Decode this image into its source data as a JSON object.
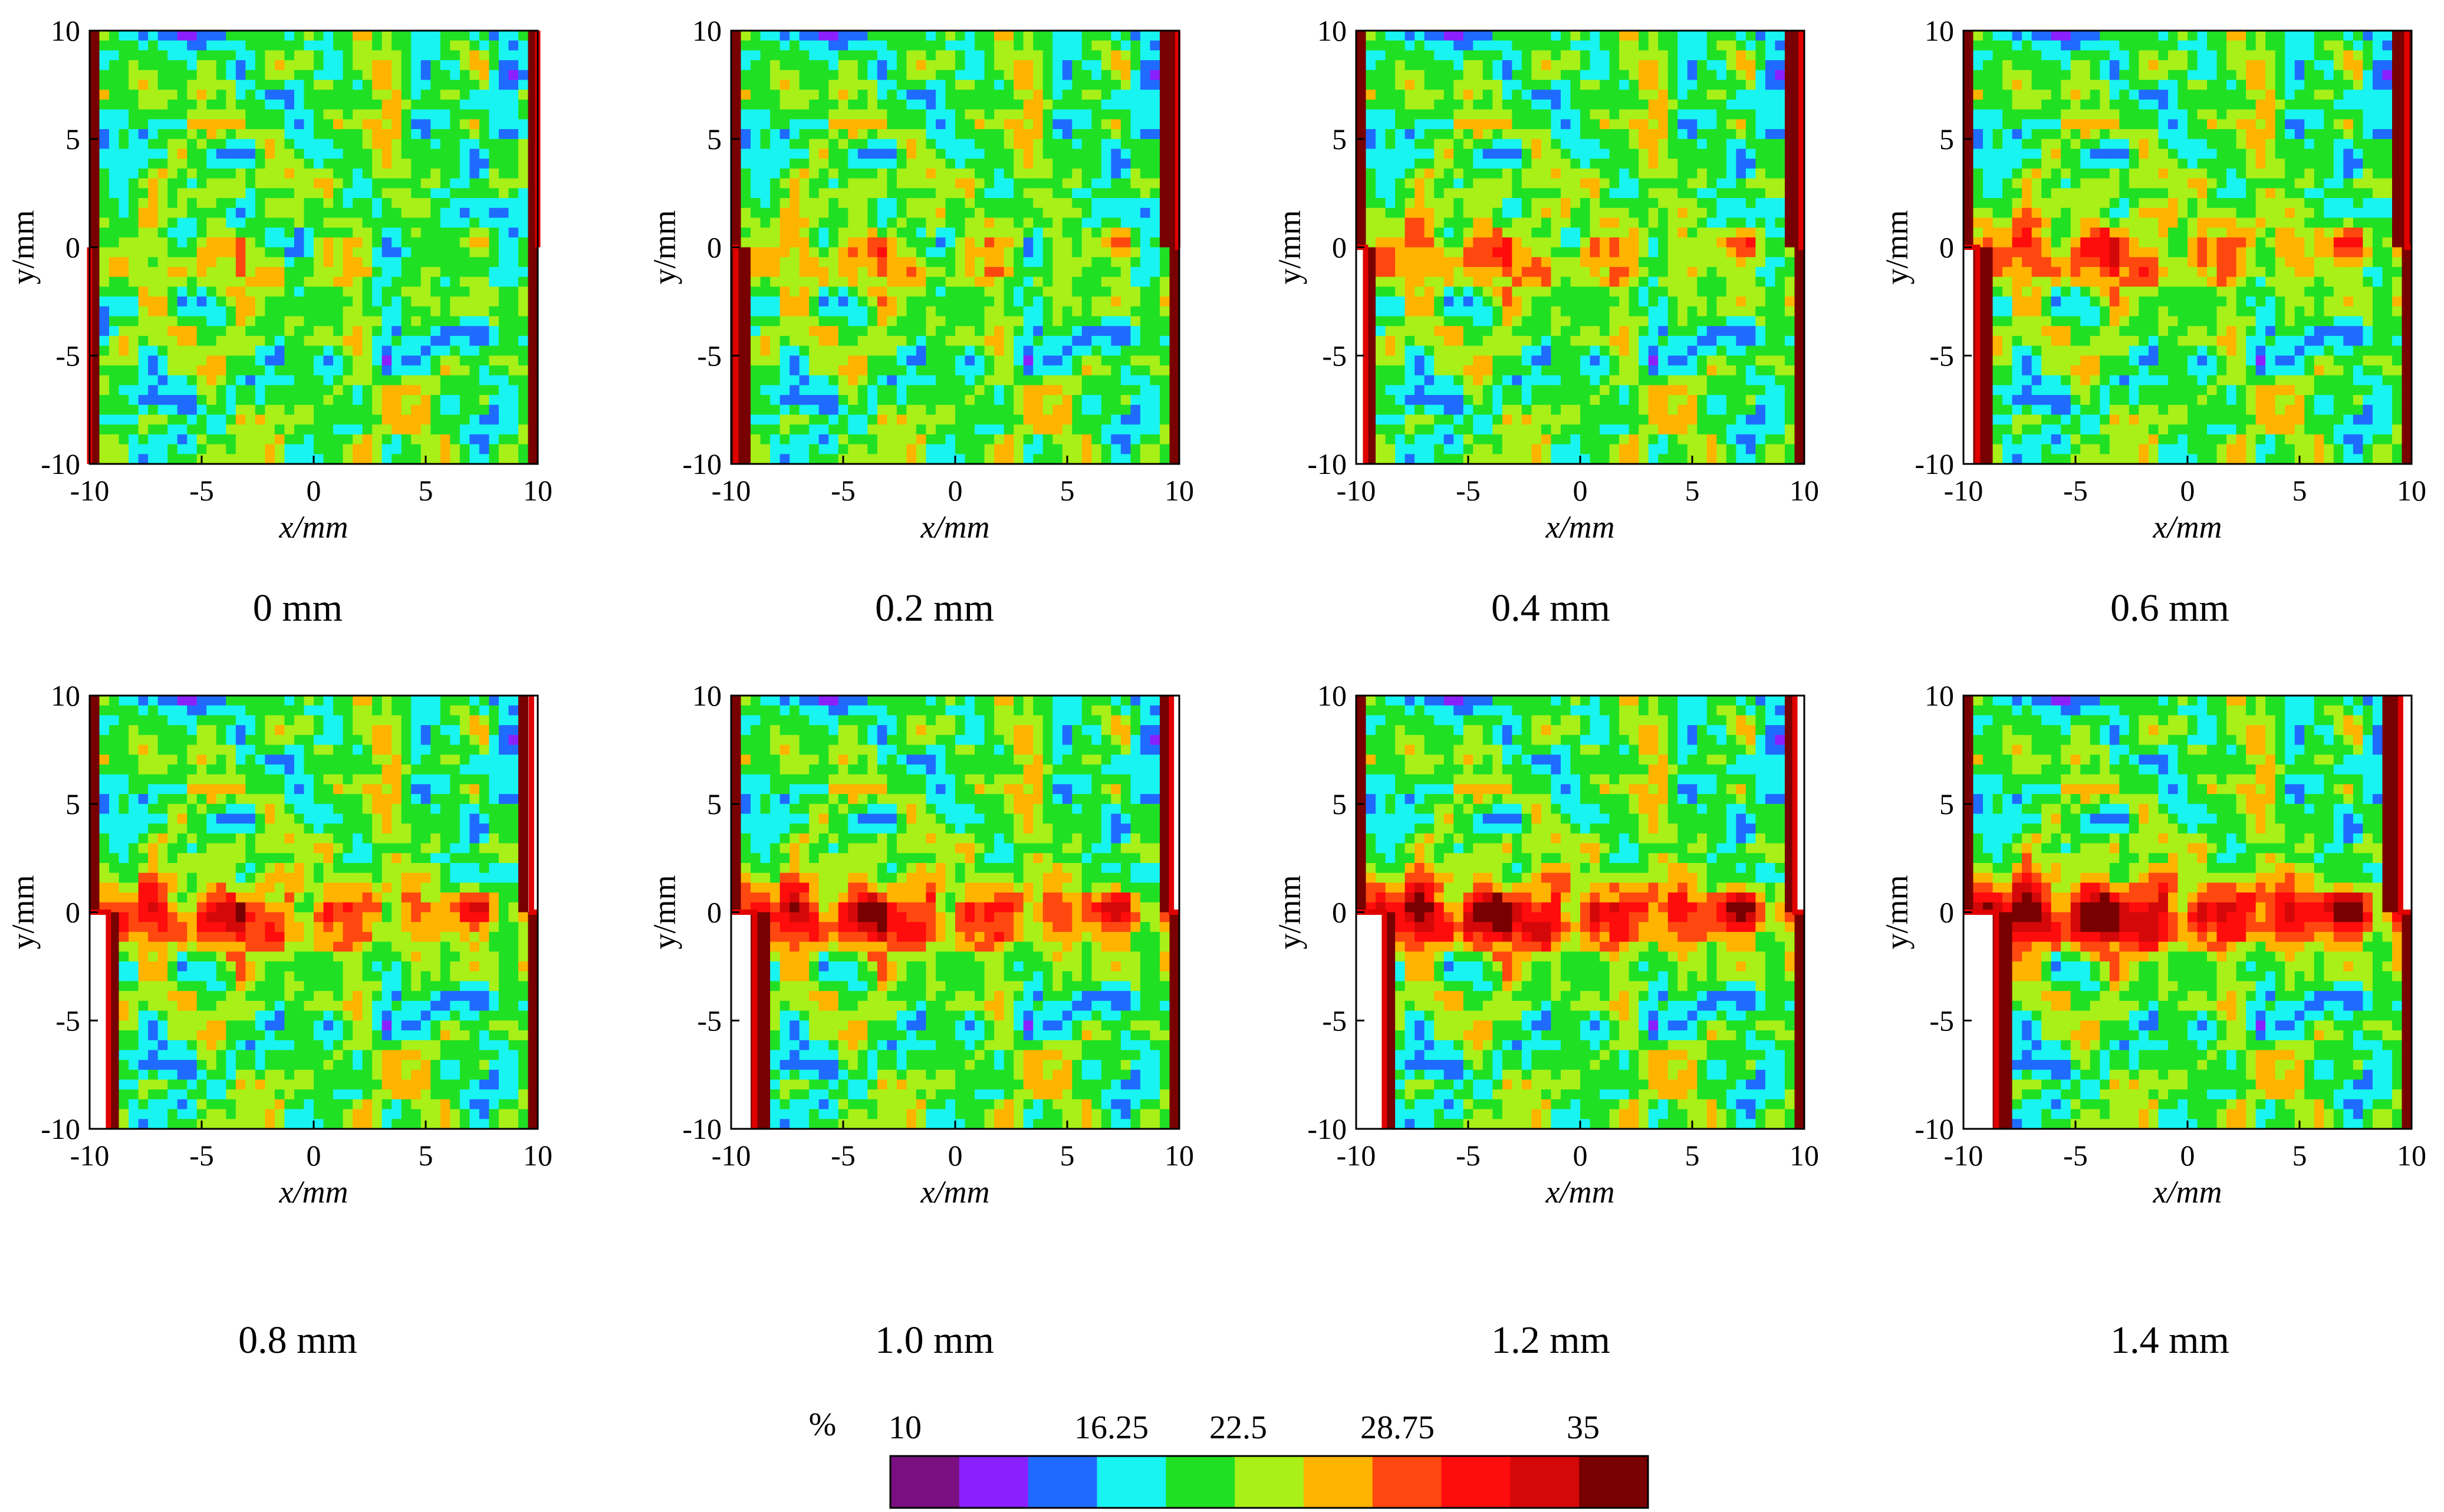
{
  "chart_data": {
    "type": "heatmap",
    "description_units": "%",
    "panels": [
      {
        "caption": "0 mm",
        "displacement_mm": 0.0,
        "xlabel": "x/mm",
        "ylabel": "y/mm",
        "xlim": [
          -10,
          10
        ],
        "ylim": [
          -10,
          10
        ],
        "xticks": [
          "-10",
          "-5",
          "0",
          "5",
          "10"
        ],
        "yticks": [
          "10",
          "5",
          "0",
          "-5",
          "-10"
        ]
      },
      {
        "caption": "0.2 mm",
        "displacement_mm": 0.2,
        "xlabel": "x/mm",
        "ylabel": "y/mm",
        "xlim": [
          -10,
          10
        ],
        "ylim": [
          -10,
          10
        ],
        "xticks": [
          "-10",
          "-5",
          "0",
          "5",
          "10"
        ],
        "yticks": [
          "10",
          "5",
          "0",
          "-5",
          "-10"
        ]
      },
      {
        "caption": "0.4 mm",
        "displacement_mm": 0.4,
        "xlabel": "x/mm",
        "ylabel": "y/mm",
        "xlim": [
          -10,
          10
        ],
        "ylim": [
          -10,
          10
        ],
        "xticks": [
          "-10",
          "-5",
          "0",
          "5",
          "10"
        ],
        "yticks": [
          "10",
          "5",
          "0",
          "-5",
          "-10"
        ]
      },
      {
        "caption": "0.6 mm",
        "displacement_mm": 0.6,
        "xlabel": "x/mm",
        "ylabel": "y/mm",
        "xlim": [
          -10,
          10
        ],
        "ylim": [
          -10,
          10
        ],
        "xticks": [
          "-10",
          "-5",
          "0",
          "5",
          "10"
        ],
        "yticks": [
          "10",
          "5",
          "0",
          "-5",
          "-10"
        ]
      },
      {
        "caption": "0.8 mm",
        "displacement_mm": 0.8,
        "xlabel": "x/mm",
        "ylabel": "y/mm",
        "xlim": [
          -10,
          10
        ],
        "ylim": [
          -10,
          10
        ],
        "xticks": [
          "-10",
          "-5",
          "0",
          "5",
          "10"
        ],
        "yticks": [
          "10",
          "5",
          "0",
          "-5",
          "-10"
        ]
      },
      {
        "caption": "1.0 mm",
        "displacement_mm": 1.0,
        "xlabel": "x/mm",
        "ylabel": "y/mm",
        "xlim": [
          -10,
          10
        ],
        "ylim": [
          -10,
          10
        ],
        "xticks": [
          "-10",
          "-5",
          "0",
          "5",
          "10"
        ],
        "yticks": [
          "10",
          "5",
          "0",
          "-5",
          "-10"
        ]
      },
      {
        "caption": "1.2 mm",
        "displacement_mm": 1.2,
        "xlabel": "x/mm",
        "ylabel": "y/mm",
        "xlim": [
          -10,
          10
        ],
        "ylim": [
          -10,
          10
        ],
        "xticks": [
          "-10",
          "-5",
          "0",
          "5",
          "10"
        ],
        "yticks": [
          "10",
          "5",
          "0",
          "-5",
          "-10"
        ]
      },
      {
        "caption": "1.4 mm",
        "displacement_mm": 1.4,
        "xlabel": "x/mm",
        "ylabel": "y/mm",
        "xlim": [
          -10,
          10
        ],
        "ylim": [
          -10,
          10
        ],
        "xticks": [
          "-10",
          "-5",
          "0",
          "5",
          "10"
        ],
        "yticks": [
          "10",
          "5",
          "0",
          "-5",
          "-10"
        ]
      }
    ],
    "colorbar": {
      "unit_label": "%",
      "min": 10,
      "max": 35,
      "tick_labels": [
        "10",
        "16.25",
        "22.5",
        "28.75",
        "35"
      ],
      "tick_values": [
        10,
        16.25,
        22.5,
        28.75,
        35
      ],
      "colors": [
        "#7a0f82",
        "#8b20ff",
        "#1f6bff",
        "#18f4f2",
        "#20e024",
        "#a8f018",
        "#ffb400",
        "#ff4810",
        "#ff0c0c",
        "#d40808",
        "#780000"
      ]
    }
  }
}
